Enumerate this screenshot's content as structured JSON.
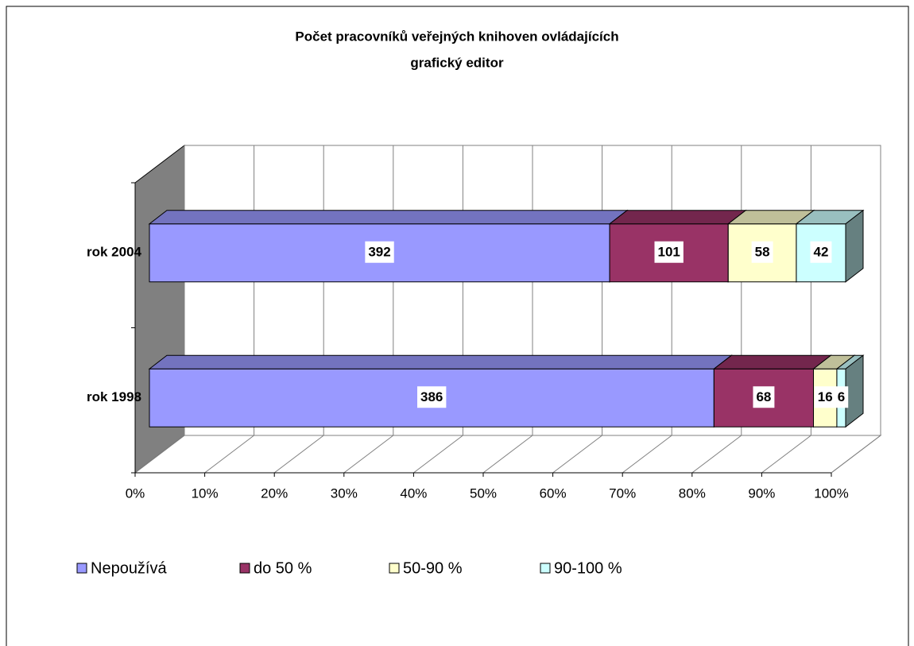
{
  "chart_data": {
    "type": "bar",
    "orientation": "horizontal",
    "stacked": "percent",
    "three_d": true,
    "title": [
      "Počet pracovníků veřejných knihoven ovládajících",
      "grafický editor"
    ],
    "categories": [
      "rok 2004",
      "rok 1998"
    ],
    "series": [
      {
        "name": "Nepoužívá",
        "color": "#9999ff",
        "values": [
          392,
          386
        ]
      },
      {
        "name": "do 50 %",
        "color": "#993366",
        "values": [
          101,
          68
        ]
      },
      {
        "name": "50-90 %",
        "color": "#ffffcc",
        "values": [
          58,
          16
        ]
      },
      {
        "name": "90-100 %",
        "color": "#ccffff",
        "values": [
          42,
          6
        ]
      }
    ],
    "xlim": [
      0,
      100
    ],
    "xticks": [
      {
        "value": 0,
        "label": "0%"
      },
      {
        "value": 10,
        "label": "10%"
      },
      {
        "value": 20,
        "label": "20%"
      },
      {
        "value": 30,
        "label": "30%"
      },
      {
        "value": 40,
        "label": "40%"
      },
      {
        "value": 50,
        "label": "50%"
      },
      {
        "value": 60,
        "label": "60%"
      },
      {
        "value": 70,
        "label": "70%"
      },
      {
        "value": 80,
        "label": "80%"
      },
      {
        "value": 90,
        "label": "90%"
      },
      {
        "value": 100,
        "label": "100%"
      }
    ],
    "grid": true,
    "legend": "bottom"
  }
}
